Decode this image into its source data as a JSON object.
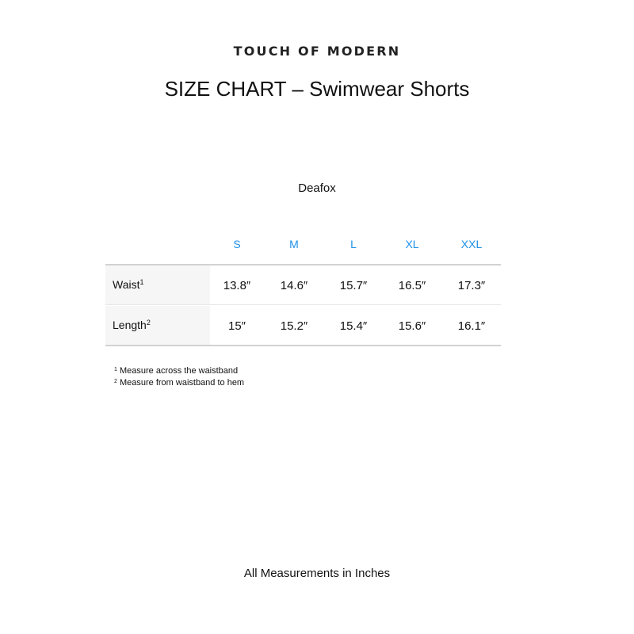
{
  "logo": "TOUCH OF MODERN",
  "title": "SIZE CHART – Swimwear Shorts",
  "brand": "Deafox",
  "colors": {
    "size_header": "#1e90e8",
    "label_bg": "#f6f6f6",
    "rule": "#d2d2d2"
  },
  "table": {
    "sizes": [
      "S",
      "M",
      "L",
      "XL",
      "XXL"
    ],
    "rows": [
      {
        "label": "Waist",
        "note": "1",
        "values": [
          "13.8″",
          "14.6″",
          "15.7″",
          "16.5″",
          "17.3″"
        ]
      },
      {
        "label": "Length",
        "note": "2",
        "values": [
          "15″",
          "15.2″",
          "15.4″",
          "15.6″",
          "16.1″"
        ]
      }
    ]
  },
  "notes": [
    {
      "mark": "1",
      "text": "Measure across the waistband"
    },
    {
      "mark": "2",
      "text": "Measure from waistband to hem"
    }
  ],
  "footer": "All Measurements in Inches"
}
